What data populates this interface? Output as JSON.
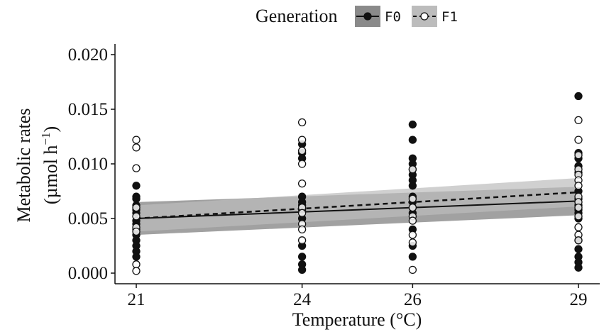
{
  "chart_data": {
    "type": "scatter",
    "xlabel": "Temperature (°C)",
    "ylabel_line1": "Metabolic rates",
    "ylabel_line2_prefix": "(µmol h",
    "ylabel_line2_exp": "−1",
    "ylabel_line2_suffix": ")",
    "x_ticks": [
      21,
      24,
      26,
      29
    ],
    "y_ticks": [
      "0.000",
      "0.005",
      "0.010",
      "0.015",
      "0.020"
    ],
    "xlim": [
      20.5,
      29.4
    ],
    "ylim": [
      -0.0005,
      0.021
    ],
    "grid": false,
    "legend_position": "top",
    "legend_title": "Generation",
    "series": [
      {
        "name": "F0",
        "marker": "filled-circle",
        "line_style": "solid",
        "color": "#111111",
        "points": [
          {
            "x": 21,
            "y": 0.008
          },
          {
            "x": 21,
            "y": 0.007
          },
          {
            "x": 21,
            "y": 0.0068
          },
          {
            "x": 21,
            "y": 0.0062
          },
          {
            "x": 21,
            "y": 0.0058
          },
          {
            "x": 21,
            "y": 0.0055
          },
          {
            "x": 21,
            "y": 0.0048
          },
          {
            "x": 21,
            "y": 0.0045
          },
          {
            "x": 21,
            "y": 0.004
          },
          {
            "x": 21,
            "y": 0.0035
          },
          {
            "x": 21,
            "y": 0.003
          },
          {
            "x": 21,
            "y": 0.0025
          },
          {
            "x": 21,
            "y": 0.002
          },
          {
            "x": 21,
            "y": 0.0015
          },
          {
            "x": 24,
            "y": 0.0118
          },
          {
            "x": 24,
            "y": 0.011
          },
          {
            "x": 24,
            "y": 0.0105
          },
          {
            "x": 24,
            "y": 0.007
          },
          {
            "x": 24,
            "y": 0.0065
          },
          {
            "x": 24,
            "y": 0.0062
          },
          {
            "x": 24,
            "y": 0.0058
          },
          {
            "x": 24,
            "y": 0.005
          },
          {
            "x": 24,
            "y": 0.0025
          },
          {
            "x": 24,
            "y": 0.0015
          },
          {
            "x": 24,
            "y": 0.0008
          },
          {
            "x": 24,
            "y": 0.0003
          },
          {
            "x": 26,
            "y": 0.0136
          },
          {
            "x": 26,
            "y": 0.0122
          },
          {
            "x": 26,
            "y": 0.0105
          },
          {
            "x": 26,
            "y": 0.01
          },
          {
            "x": 26,
            "y": 0.0095
          },
          {
            "x": 26,
            "y": 0.009
          },
          {
            "x": 26,
            "y": 0.0085
          },
          {
            "x": 26,
            "y": 0.008
          },
          {
            "x": 26,
            "y": 0.007
          },
          {
            "x": 26,
            "y": 0.0065
          },
          {
            "x": 26,
            "y": 0.006
          },
          {
            "x": 26,
            "y": 0.0055
          },
          {
            "x": 26,
            "y": 0.004
          },
          {
            "x": 26,
            "y": 0.0025
          },
          {
            "x": 26,
            "y": 0.0015
          },
          {
            "x": 29,
            "y": 0.0162
          },
          {
            "x": 29,
            "y": 0.011
          },
          {
            "x": 29,
            "y": 0.0105
          },
          {
            "x": 29,
            "y": 0.0098
          },
          {
            "x": 29,
            "y": 0.0092
          },
          {
            "x": 29,
            "y": 0.0075
          },
          {
            "x": 29,
            "y": 0.0068
          },
          {
            "x": 29,
            "y": 0.0062
          },
          {
            "x": 29,
            "y": 0.0058
          },
          {
            "x": 29,
            "y": 0.0055
          },
          {
            "x": 29,
            "y": 0.005
          },
          {
            "x": 29,
            "y": 0.003
          },
          {
            "x": 29,
            "y": 0.0022
          },
          {
            "x": 29,
            "y": 0.0015
          },
          {
            "x": 29,
            "y": 0.001
          },
          {
            "x": 29,
            "y": 0.0005
          }
        ],
        "fit": {
          "x": [
            21,
            29
          ],
          "y": [
            0.005,
            0.0066
          ]
        },
        "ci": {
          "x": [
            21,
            29
          ],
          "lower": [
            0.0035,
            0.0053
          ],
          "upper": [
            0.0065,
            0.0079
          ]
        }
      },
      {
        "name": "F1",
        "marker": "open-circle",
        "line_style": "dashed",
        "color": "#111111",
        "points": [
          {
            "x": 21,
            "y": 0.0122
          },
          {
            "x": 21,
            "y": 0.0115
          },
          {
            "x": 21,
            "y": 0.0096
          },
          {
            "x": 21,
            "y": 0.006
          },
          {
            "x": 21,
            "y": 0.0052
          },
          {
            "x": 21,
            "y": 0.0042
          },
          {
            "x": 21,
            "y": 0.0038
          },
          {
            "x": 21,
            "y": 0.0008
          },
          {
            "x": 21,
            "y": 0.0002
          },
          {
            "x": 24,
            "y": 0.0138
          },
          {
            "x": 24,
            "y": 0.0122
          },
          {
            "x": 24,
            "y": 0.0112
          },
          {
            "x": 24,
            "y": 0.01
          },
          {
            "x": 24,
            "y": 0.0082
          },
          {
            "x": 24,
            "y": 0.006
          },
          {
            "x": 24,
            "y": 0.0055
          },
          {
            "x": 24,
            "y": 0.0045
          },
          {
            "x": 24,
            "y": 0.004
          },
          {
            "x": 24,
            "y": 0.003
          },
          {
            "x": 26,
            "y": 0.0095
          },
          {
            "x": 26,
            "y": 0.0068
          },
          {
            "x": 26,
            "y": 0.006
          },
          {
            "x": 26,
            "y": 0.0052
          },
          {
            "x": 26,
            "y": 0.0048
          },
          {
            "x": 26,
            "y": 0.0035
          },
          {
            "x": 26,
            "y": 0.0028
          },
          {
            "x": 26,
            "y": 0.0003
          },
          {
            "x": 29,
            "y": 0.014
          },
          {
            "x": 29,
            "y": 0.0122
          },
          {
            "x": 29,
            "y": 0.0108
          },
          {
            "x": 29,
            "y": 0.0095
          },
          {
            "x": 29,
            "y": 0.009
          },
          {
            "x": 29,
            "y": 0.0085
          },
          {
            "x": 29,
            "y": 0.008
          },
          {
            "x": 29,
            "y": 0.007
          },
          {
            "x": 29,
            "y": 0.0065
          },
          {
            "x": 29,
            "y": 0.006
          },
          {
            "x": 29,
            "y": 0.0052
          },
          {
            "x": 29,
            "y": 0.0042
          },
          {
            "x": 29,
            "y": 0.0035
          },
          {
            "x": 29,
            "y": 0.003
          }
        ],
        "fit": {
          "x": [
            21,
            29
          ],
          "y": [
            0.005,
            0.0074
          ]
        },
        "ci": {
          "x": [
            21,
            29
          ],
          "lower": [
            0.0038,
            0.0061
          ],
          "upper": [
            0.0062,
            0.0087
          ]
        }
      }
    ]
  }
}
